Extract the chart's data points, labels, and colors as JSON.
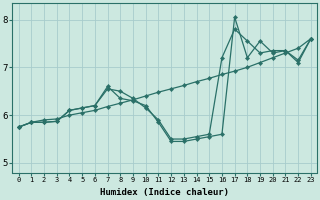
{
  "xlabel": "Humidex (Indice chaleur)",
  "bg_color": "#cce8e0",
  "grid_color": "#a8cccc",
  "line_color": "#2a7068",
  "xlim": [
    -0.5,
    23.5
  ],
  "ylim": [
    4.8,
    8.35
  ],
  "xticks": [
    0,
    1,
    2,
    3,
    4,
    5,
    6,
    7,
    8,
    9,
    10,
    11,
    12,
    13,
    14,
    15,
    16,
    17,
    18,
    19,
    20,
    21,
    22,
    23
  ],
  "yticks": [
    5,
    6,
    7,
    8
  ],
  "series": [
    {
      "x": [
        0,
        1,
        2,
        3,
        4,
        5,
        6,
        7,
        8,
        9,
        10,
        11,
        12,
        13,
        14,
        15,
        16,
        17,
        18,
        19,
        20,
        21,
        22,
        23
      ],
      "y": [
        5.75,
        5.85,
        5.85,
        5.87,
        6.1,
        6.15,
        6.2,
        6.6,
        6.35,
        6.3,
        6.2,
        5.85,
        5.45,
        5.45,
        5.5,
        5.55,
        5.6,
        8.05,
        7.2,
        7.55,
        7.3,
        7.35,
        7.1,
        7.6
      ]
    },
    {
      "x": [
        0,
        1,
        2,
        3,
        4,
        5,
        6,
        7,
        8,
        9,
        10,
        11,
        12,
        13,
        14,
        15,
        16,
        17,
        18,
        19,
        20,
        21,
        22,
        23
      ],
      "y": [
        5.75,
        5.85,
        5.85,
        5.87,
        6.1,
        6.15,
        6.2,
        6.55,
        6.5,
        6.35,
        6.15,
        5.9,
        5.5,
        5.5,
        5.55,
        5.6,
        7.2,
        7.8,
        7.55,
        7.3,
        7.35,
        7.35,
        7.15,
        7.6
      ]
    },
    {
      "x": [
        0,
        1,
        2,
        3,
        4,
        5,
        6,
        7,
        8,
        9,
        10,
        11,
        12,
        13,
        14,
        15,
        16,
        17,
        18,
        19,
        20,
        21,
        22,
        23
      ],
      "y": [
        5.75,
        5.85,
        5.9,
        5.92,
        6.0,
        6.05,
        6.1,
        6.18,
        6.25,
        6.32,
        6.4,
        6.48,
        6.55,
        6.62,
        6.7,
        6.77,
        6.85,
        6.92,
        7.0,
        7.1,
        7.2,
        7.3,
        7.4,
        7.6
      ]
    }
  ]
}
